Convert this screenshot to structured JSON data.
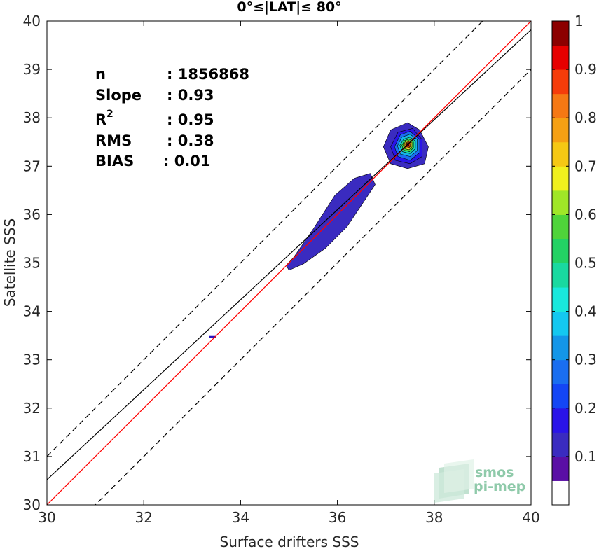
{
  "chart_data": {
    "type": "heatmap",
    "title": "0°≤|LAT|≤ 80°",
    "xlabel": "Surface drifters SSS",
    "ylabel": "Satellite SSS",
    "xlim": [
      30,
      40
    ],
    "ylim": [
      30,
      40
    ],
    "xticks": [
      30,
      32,
      34,
      36,
      38,
      40
    ],
    "yticks": [
      30,
      31,
      32,
      33,
      34,
      35,
      36,
      37,
      38,
      39,
      40
    ],
    "grid": false,
    "stats": [
      {
        "label": "n",
        "value": ": 1856868"
      },
      {
        "label": "Slope",
        "value": ": 0.93"
      },
      {
        "label": "R",
        "sup": "2",
        "value": ": 0.95"
      },
      {
        "label": "RMS",
        "value": ": 0.38"
      },
      {
        "label": "BIAS",
        "value": ": 0.01"
      }
    ],
    "lines": [
      {
        "name": "identity",
        "color": "#ff0000",
        "dash": false,
        "slope": 1.0,
        "intercept": 0.0
      },
      {
        "name": "regression",
        "color": "#000000",
        "dash": false,
        "slope": 0.93,
        "intercept": 2.62
      },
      {
        "name": "upper-bound",
        "color": "#000000",
        "dash": true,
        "slope": 1.0,
        "intercept": 1.0
      },
      {
        "name": "lower-bound",
        "color": "#000000",
        "dash": true,
        "slope": 1.0,
        "intercept": -1.0
      }
    ],
    "peak": {
      "x": 37.45,
      "y": 37.45
    },
    "density_regions": [
      {
        "level": 0.05,
        "color": "#3a2bc0",
        "points": [
          [
            35.0,
            34.85
          ],
          [
            35.3,
            34.98
          ],
          [
            35.75,
            35.3
          ],
          [
            36.2,
            35.75
          ],
          [
            36.5,
            36.2
          ],
          [
            36.78,
            36.62
          ],
          [
            36.68,
            36.85
          ],
          [
            36.35,
            36.75
          ],
          [
            35.95,
            36.4
          ],
          [
            35.5,
            35.7
          ],
          [
            35.1,
            35.12
          ],
          [
            34.94,
            34.95
          ]
        ]
      },
      {
        "level": 0.05,
        "color": "#3a2bc0",
        "points": [
          [
            37.1,
            37.05
          ],
          [
            37.45,
            36.95
          ],
          [
            37.8,
            37.05
          ],
          [
            37.88,
            37.4
          ],
          [
            37.7,
            37.75
          ],
          [
            37.45,
            37.9
          ],
          [
            37.1,
            37.75
          ],
          [
            36.95,
            37.4
          ]
        ]
      },
      {
        "level": 0.1,
        "color": "#2a14e8",
        "points": [
          [
            37.2,
            37.12
          ],
          [
            37.5,
            37.05
          ],
          [
            37.75,
            37.2
          ],
          [
            37.75,
            37.55
          ],
          [
            37.55,
            37.78
          ],
          [
            37.25,
            37.7
          ],
          [
            37.1,
            37.4
          ]
        ]
      },
      {
        "level": 0.15,
        "color": "#1a6ef0",
        "points": [
          [
            37.25,
            37.2
          ],
          [
            37.5,
            37.12
          ],
          [
            37.7,
            37.28
          ],
          [
            37.7,
            37.55
          ],
          [
            37.5,
            37.72
          ],
          [
            37.3,
            37.65
          ],
          [
            37.18,
            37.4
          ]
        ]
      },
      {
        "level": 0.25,
        "color": "#14b4e8",
        "points": [
          [
            37.3,
            37.25
          ],
          [
            37.5,
            37.2
          ],
          [
            37.65,
            37.32
          ],
          [
            37.65,
            37.55
          ],
          [
            37.5,
            37.66
          ],
          [
            37.33,
            37.6
          ],
          [
            37.24,
            37.42
          ]
        ]
      },
      {
        "level": 0.4,
        "color": "#19d9a0",
        "points": [
          [
            37.34,
            37.3
          ],
          [
            37.5,
            37.26
          ],
          [
            37.61,
            37.36
          ],
          [
            37.61,
            37.52
          ],
          [
            37.5,
            37.6
          ],
          [
            37.37,
            37.56
          ],
          [
            37.29,
            37.43
          ]
        ]
      },
      {
        "level": 0.55,
        "color": "#4fd43a",
        "points": [
          [
            37.37,
            37.33
          ],
          [
            37.49,
            37.3
          ],
          [
            37.57,
            37.38
          ],
          [
            37.57,
            37.5
          ],
          [
            37.48,
            37.56
          ],
          [
            37.39,
            37.53
          ],
          [
            37.33,
            37.43
          ]
        ]
      },
      {
        "level": 0.65,
        "color": "#f0e82a",
        "points": [
          [
            37.39,
            37.36
          ],
          [
            37.48,
            37.34
          ],
          [
            37.54,
            37.4
          ],
          [
            37.54,
            37.49
          ],
          [
            37.47,
            37.53
          ],
          [
            37.41,
            37.51
          ],
          [
            37.36,
            37.44
          ]
        ]
      },
      {
        "level": 0.75,
        "color": "#f5a014",
        "points": [
          [
            37.41,
            37.38
          ],
          [
            37.48,
            37.37
          ],
          [
            37.52,
            37.42
          ],
          [
            37.52,
            37.48
          ],
          [
            37.47,
            37.51
          ],
          [
            37.42,
            37.49
          ],
          [
            37.39,
            37.44
          ]
        ]
      },
      {
        "level": 0.85,
        "color": "#f53c0a",
        "points": [
          [
            37.43,
            37.4
          ],
          [
            37.48,
            37.39
          ],
          [
            37.5,
            37.43
          ],
          [
            37.5,
            37.47
          ],
          [
            37.47,
            37.49
          ],
          [
            37.43,
            37.48
          ],
          [
            37.41,
            37.44
          ]
        ]
      },
      {
        "level": 0.95,
        "color": "#8c0000",
        "points": [
          [
            37.44,
            37.42
          ],
          [
            37.47,
            37.41
          ],
          [
            37.48,
            37.44
          ],
          [
            37.47,
            37.47
          ],
          [
            37.44,
            37.47
          ],
          [
            37.43,
            37.44
          ]
        ]
      }
    ],
    "outlier": {
      "x": [
        33.35,
        33.5
      ],
      "y": 33.47
    },
    "colorbar": {
      "ticks": [
        0.1,
        0.2,
        0.3,
        0.4,
        0.5,
        0.6,
        0.7,
        0.8,
        0.9,
        1
      ],
      "tick_labels": [
        "0.1",
        "0.2",
        "0.3",
        "0.4",
        "0.5",
        "0.6",
        "0.7",
        "0.8",
        "0.9",
        "1"
      ],
      "bands": [
        {
          "from": 0.0,
          "to": 0.05,
          "color": "#ffffff"
        },
        {
          "from": 0.05,
          "to": 0.1,
          "color": "#5a0fa5"
        },
        {
          "from": 0.1,
          "to": 0.15,
          "color": "#3a2bc0"
        },
        {
          "from": 0.15,
          "to": 0.2,
          "color": "#2a14e8"
        },
        {
          "from": 0.2,
          "to": 0.25,
          "color": "#1446f5"
        },
        {
          "from": 0.25,
          "to": 0.3,
          "color": "#1a6ef0"
        },
        {
          "from": 0.3,
          "to": 0.35,
          "color": "#1496e8"
        },
        {
          "from": 0.35,
          "to": 0.4,
          "color": "#14c8f0"
        },
        {
          "from": 0.4,
          "to": 0.45,
          "color": "#19e8dc"
        },
        {
          "from": 0.45,
          "to": 0.5,
          "color": "#19d9a0"
        },
        {
          "from": 0.5,
          "to": 0.55,
          "color": "#23d264"
        },
        {
          "from": 0.55,
          "to": 0.6,
          "color": "#4fd43a"
        },
        {
          "from": 0.6,
          "to": 0.65,
          "color": "#a0e628"
        },
        {
          "from": 0.65,
          "to": 0.7,
          "color": "#f0f01e"
        },
        {
          "from": 0.7,
          "to": 0.75,
          "color": "#f5c814"
        },
        {
          "from": 0.75,
          "to": 0.8,
          "color": "#f5a014"
        },
        {
          "from": 0.8,
          "to": 0.85,
          "color": "#f57814"
        },
        {
          "from": 0.85,
          "to": 0.9,
          "color": "#f53c0a"
        },
        {
          "from": 0.9,
          "to": 0.95,
          "color": "#e60000"
        },
        {
          "from": 0.95,
          "to": 1.0,
          "color": "#8c0000"
        }
      ]
    }
  },
  "watermark": {
    "line1": "smos",
    "line2": "pi-mep",
    "color": "#8fcaaa"
  }
}
